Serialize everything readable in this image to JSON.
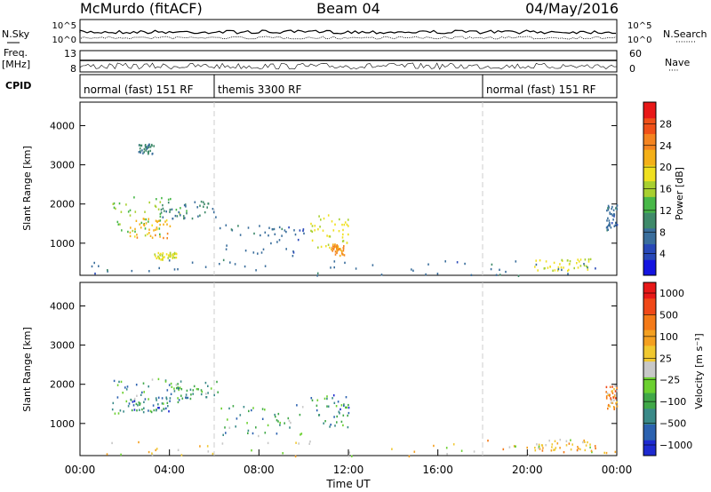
{
  "header": {
    "station": "McMurdo (fitACF)",
    "beam": "Beam 04",
    "date": "04/May/2016"
  },
  "summary_panels": {
    "nsky_label": "N.Sky",
    "nsky_ticks": [
      "10^5",
      "10^0"
    ],
    "nsearch_label": "N.Search",
    "nsearch_ticks": [
      "10^5",
      "10^0"
    ],
    "freq_label": "Freq.",
    "freq_unit": "[MHz]",
    "freq_ticks": [
      "13",
      "8"
    ],
    "nave_label": "Nave",
    "nave_ticks": [
      "60",
      "0"
    ],
    "cpid_label": "CPID",
    "cpid_segments": [
      {
        "label": "normal (fast) 151 RF",
        "start_hour": 0,
        "end_hour": 6
      },
      {
        "label": "themis 3300 RF",
        "start_hour": 6,
        "end_hour": 18
      },
      {
        "label": "normal (fast) 151 RF",
        "start_hour": 18,
        "end_hour": 24
      }
    ]
  },
  "chart_data": [
    {
      "type": "heatmap",
      "name": "power",
      "x_range_hours": [
        0,
        24
      ],
      "ylim": [
        180,
        4600
      ],
      "ylabel": "Slant Range [km]",
      "yticks": [
        1000,
        2000,
        3000,
        4000
      ],
      "colorbar": {
        "label": "Power [dB]",
        "range": [
          0,
          32
        ],
        "ticks": [
          "4",
          "8",
          "12",
          "16",
          "20",
          "24",
          "28"
        ],
        "colors": [
          "#1414e0",
          "#2848b8",
          "#3a6e9c",
          "#3f8a6a",
          "#48b848",
          "#a8d030",
          "#f0e020",
          "#f4b018",
          "#f48420",
          "#f05018",
          "#e81818"
        ]
      },
      "patches": [
        {
          "x": [
            1.4,
            4.8
          ],
          "y": [
            1200,
            2200
          ],
          "level": 14
        },
        {
          "x": [
            2.2,
            4.0
          ],
          "y": [
            1150,
            1650
          ],
          "level": 22
        },
        {
          "x": [
            3.6,
            6.2
          ],
          "y": [
            1650,
            2100
          ],
          "level": 8
        },
        {
          "x": [
            2.6,
            3.3
          ],
          "y": [
            3300,
            3550
          ],
          "level": 8
        },
        {
          "x": [
            10.3,
            12.0
          ],
          "y": [
            900,
            1750
          ],
          "level": 18
        },
        {
          "x": [
            11.2,
            11.8
          ],
          "y": [
            700,
            1000
          ],
          "level": 24
        },
        {
          "x": [
            20.3,
            22.8
          ],
          "y": [
            320,
            620
          ],
          "level": 18
        },
        {
          "x": [
            23.5,
            24.0
          ],
          "y": [
            1350,
            2000
          ],
          "level": 6
        },
        {
          "x": [
            3.3,
            4.3
          ],
          "y": [
            600,
            780
          ],
          "level": 18
        },
        {
          "x": [
            6.2,
            10.0
          ],
          "y": [
            700,
            1500
          ],
          "level": 6
        },
        {
          "x": [
            0.5,
            24.0
          ],
          "y": [
            180,
            600
          ],
          "level": 6
        }
      ]
    },
    {
      "type": "heatmap",
      "name": "velocity",
      "x_range_hours": [
        0,
        24
      ],
      "ylim": [
        180,
        4600
      ],
      "ylabel": "Slant Range [km]",
      "yticks": [
        1000,
        2000,
        3000,
        4000
      ],
      "xticks": [
        "00:00",
        "04:00",
        "08:00",
        "12:00",
        "16:00",
        "20:00",
        "00:00"
      ],
      "xlabel": "Time UT",
      "colorbar": {
        "label": "Velocity [m s⁻¹]",
        "ticks": [
          "1000",
          "500",
          "100",
          "25",
          "−25",
          "−100",
          "−500",
          "−1000"
        ],
        "colors": [
          "#1e2ad0",
          "#2c62b0",
          "#3a8a88",
          "#40a848",
          "#6cd030",
          "#c8c8c8",
          "#f0c830",
          "#f4a020",
          "#f47a18",
          "#f04818",
          "#e81818"
        ]
      },
      "patches": [
        {
          "x": [
            1.4,
            4.8
          ],
          "y": [
            1200,
            2200
          ],
          "level": 3
        },
        {
          "x": [
            2.0,
            4.0
          ],
          "y": [
            1300,
            1700
          ],
          "level": 2
        },
        {
          "x": [
            3.6,
            6.2
          ],
          "y": [
            1650,
            2100
          ],
          "level": 3
        },
        {
          "x": [
            10.3,
            12.0
          ],
          "y": [
            900,
            1750
          ],
          "level": 2
        },
        {
          "x": [
            20.3,
            22.8
          ],
          "y": [
            320,
            620
          ],
          "level": 6
        },
        {
          "x": [
            23.5,
            24.0
          ],
          "y": [
            1350,
            2000
          ],
          "level": 7
        },
        {
          "x": [
            6.2,
            10.0
          ],
          "y": [
            700,
            1500
          ],
          "level": 3
        },
        {
          "x": [
            0.5,
            24.0
          ],
          "y": [
            180,
            600
          ],
          "level": 6
        }
      ]
    }
  ]
}
